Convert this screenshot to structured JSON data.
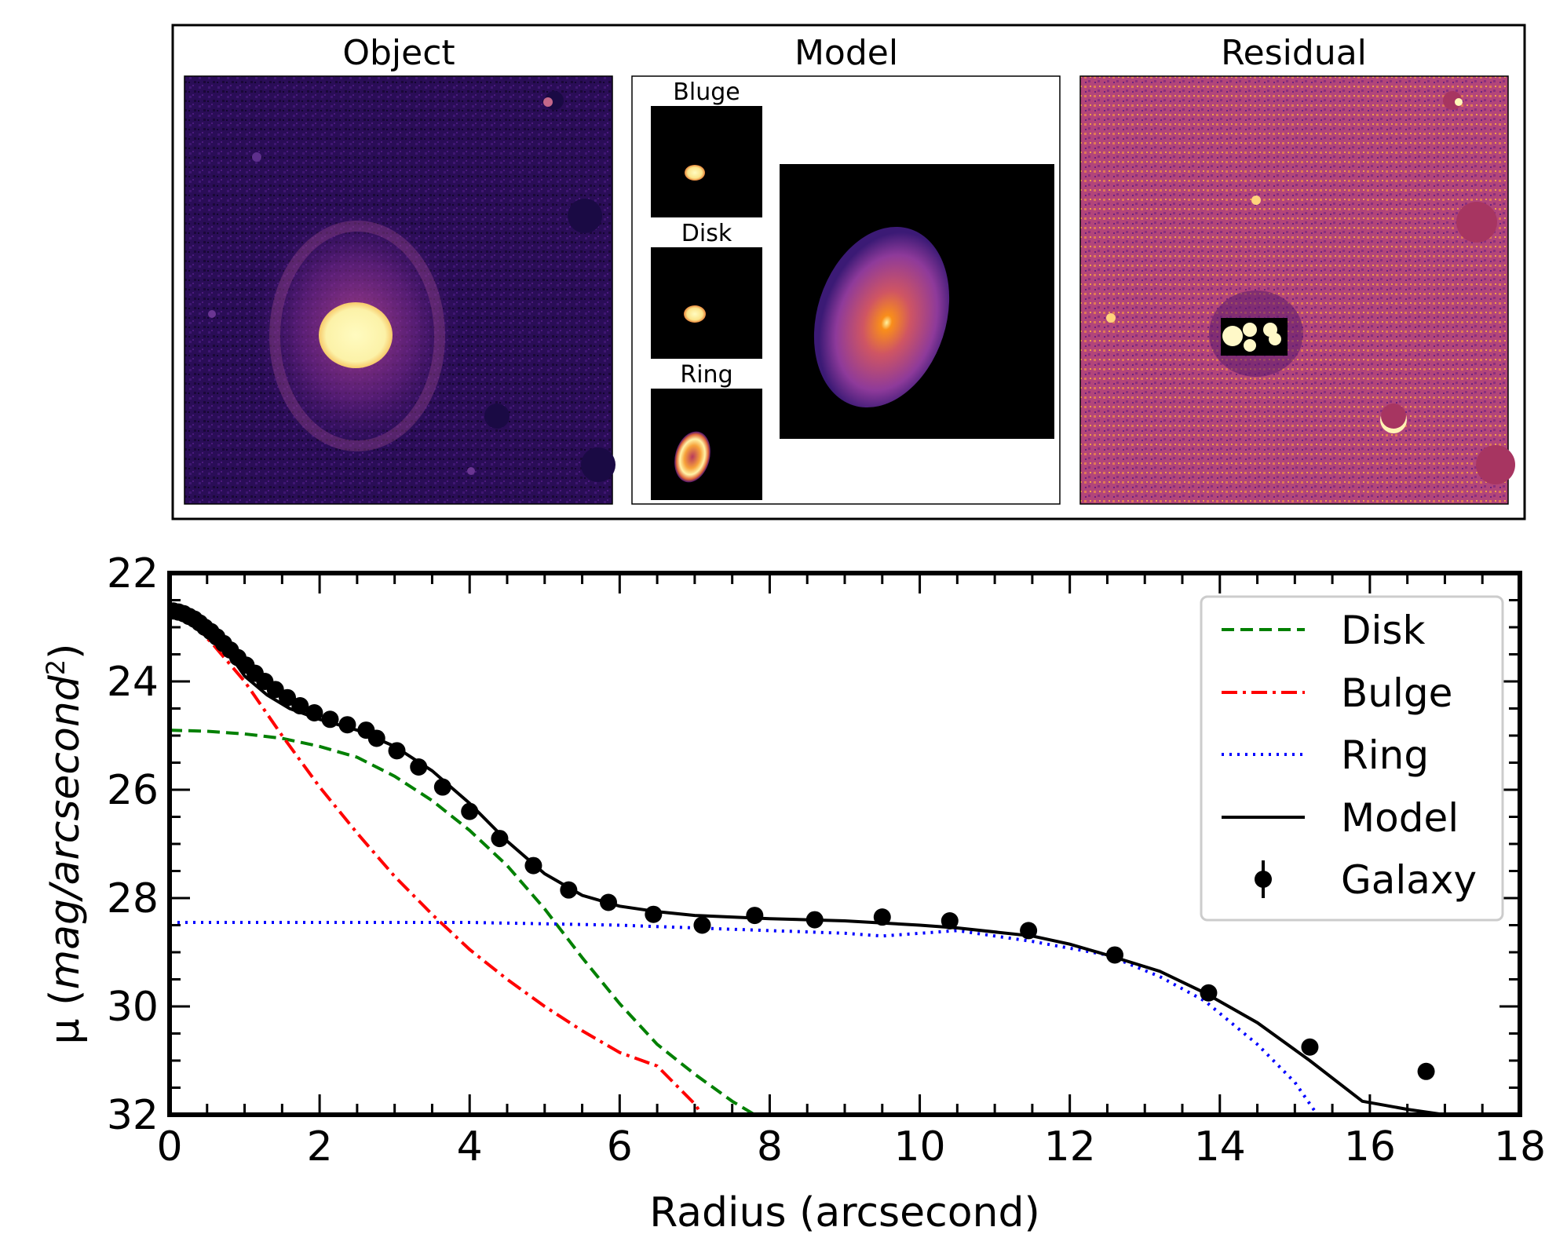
{
  "panels": {
    "object_title": "Object",
    "model_title": "Model",
    "residual_title": "Residual",
    "sub_bulge": "Bluge",
    "sub_disk": "Disk",
    "sub_ring": "Ring"
  },
  "chart_data": {
    "type": "line",
    "title": "",
    "xlabel": "Radius (arcsecond)",
    "ylabel_prefix": "μ (",
    "ylabel_italic": "mag/arcsecond",
    "ylabel_sup": "2",
    "ylabel_suffix": ")",
    "xlim": [
      0,
      18
    ],
    "ylim": [
      32,
      22
    ],
    "y_inverted": true,
    "xticks": [
      0,
      2,
      4,
      6,
      8,
      10,
      12,
      14,
      16,
      18
    ],
    "yticks": [
      22,
      24,
      26,
      28,
      30,
      32
    ],
    "legend_position": "top-right",
    "series": [
      {
        "name": "Disk",
        "style": "dashed",
        "color": "#008000",
        "x": [
          0,
          0.5,
          1,
          1.5,
          2,
          2.5,
          3,
          3.5,
          4,
          4.5,
          5,
          5.5,
          6,
          6.5,
          7,
          7.5,
          7.8
        ],
        "y": [
          24.9,
          24.92,
          24.97,
          25.05,
          25.2,
          25.4,
          25.75,
          26.2,
          26.75,
          27.4,
          28.2,
          29.1,
          29.95,
          30.7,
          31.25,
          31.75,
          32.0
        ]
      },
      {
        "name": "Bulge",
        "style": "dashdot",
        "color": "#ff0000",
        "x": [
          0,
          0.3,
          0.6,
          1,
          1.5,
          2,
          2.5,
          3,
          3.5,
          4,
          4.5,
          5,
          5.5,
          6,
          6.5,
          7,
          7.1
        ],
        "y": [
          22.6,
          22.9,
          23.35,
          24.0,
          25.0,
          25.95,
          26.8,
          27.6,
          28.3,
          28.95,
          29.5,
          30.0,
          30.45,
          30.85,
          31.1,
          31.8,
          32.0
        ]
      },
      {
        "name": "Ring",
        "style": "dotted",
        "color": "#0000ff",
        "x": [
          0,
          2,
          4,
          6,
          7,
          8,
          9,
          9.5,
          10.5,
          11.5,
          12.5,
          13.2,
          13.8,
          14.5,
          15.0,
          15.3
        ],
        "y": [
          28.45,
          28.45,
          28.45,
          28.5,
          28.55,
          28.6,
          28.65,
          28.7,
          28.6,
          28.8,
          29.05,
          29.45,
          29.9,
          30.7,
          31.4,
          32.0
        ]
      },
      {
        "name": "Model",
        "style": "solid",
        "color": "#000000",
        "x": [
          0,
          0.2,
          0.5,
          0.8,
          1,
          1.3,
          1.6,
          2,
          2.5,
          3,
          3.5,
          4,
          4.5,
          5,
          5.5,
          6,
          6.5,
          7,
          8,
          9,
          10,
          10.5,
          11.5,
          12,
          12.5,
          13.2,
          13.8,
          14.5,
          15.2,
          15.9,
          16.5,
          17.0
        ],
        "y": [
          22.65,
          22.75,
          23.05,
          23.5,
          23.9,
          24.25,
          24.5,
          24.7,
          24.9,
          25.2,
          25.65,
          26.25,
          26.95,
          27.55,
          27.95,
          28.15,
          28.25,
          28.32,
          28.38,
          28.42,
          28.5,
          28.55,
          28.7,
          28.85,
          29.05,
          29.35,
          29.75,
          30.3,
          31.0,
          31.75,
          31.9,
          32.0
        ]
      },
      {
        "name": "Galaxy",
        "style": "markers",
        "color": "#000000",
        "x": [
          0.05,
          0.12,
          0.19,
          0.26,
          0.33,
          0.4,
          0.47,
          0.55,
          0.63,
          0.72,
          0.81,
          0.91,
          1.02,
          1.14,
          1.27,
          1.41,
          1.57,
          1.74,
          1.93,
          2.14,
          2.37,
          2.62,
          2.76,
          3.03,
          3.32,
          3.64,
          4.0,
          4.4,
          4.85,
          5.32,
          5.85,
          6.45,
          7.1,
          7.8,
          8.6,
          9.5,
          10.4,
          11.45,
          12.6,
          13.85,
          15.2,
          16.75
        ],
        "y": [
          22.7,
          22.72,
          22.75,
          22.8,
          22.85,
          22.92,
          23.0,
          23.08,
          23.18,
          23.3,
          23.42,
          23.56,
          23.7,
          23.85,
          24.0,
          24.15,
          24.3,
          24.45,
          24.58,
          24.7,
          24.8,
          24.9,
          25.05,
          25.28,
          25.58,
          25.95,
          26.4,
          26.9,
          27.4,
          27.85,
          28.08,
          28.3,
          28.5,
          28.32,
          28.4,
          28.35,
          28.42,
          28.6,
          29.05,
          29.75,
          30.75,
          31.2
        ]
      }
    ]
  }
}
